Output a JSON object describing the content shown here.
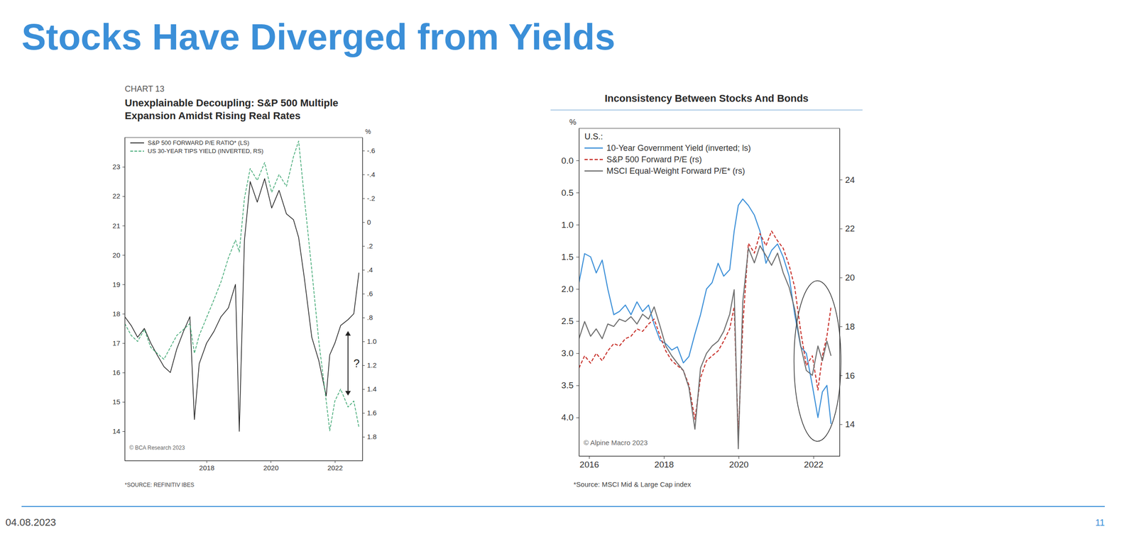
{
  "slide": {
    "title": "Stocks Have Diverged from Yields",
    "date": "04.08.2023",
    "page": 11
  },
  "chart_data": [
    {
      "type": "line",
      "label": "CHART 13",
      "title": "Unexplainable Decoupling: S&P 500 Multiple Expansion Amidst Rising Real Rates",
      "x": [
        2015.45,
        2015.65,
        2015.85,
        2016.06,
        2016.26,
        2016.46,
        2016.67,
        2016.87,
        2017.07,
        2017.28,
        2017.48,
        2017.62,
        2017.77,
        2018.0,
        2018.23,
        2018.45,
        2018.68,
        2018.9,
        2019.02,
        2019.18,
        2019.36,
        2019.58,
        2019.81,
        2020.03,
        2020.26,
        2020.49,
        2020.71,
        2020.87,
        2021.05,
        2021.28,
        2021.5,
        2021.73,
        2021.84,
        2022.0,
        2022.18,
        2022.41,
        2022.59,
        2022.75
      ],
      "xlim": [
        2015.45,
        2022.86
      ],
      "xticks": [
        2018,
        2020,
        2022
      ],
      "ylim": [
        13,
        24
      ],
      "yticks": [
        14,
        15,
        16,
        17,
        18,
        19,
        20,
        21,
        22,
        23
      ],
      "y2lim": [
        2.0,
        -0.71
      ],
      "y2ticks": [
        {
          "value": -0.6,
          "label": "-.6"
        },
        {
          "value": -0.4,
          "label": "-.4"
        },
        {
          "value": -0.2,
          "label": "-.2"
        },
        0,
        {
          "value": 0.2,
          "label": ".2"
        },
        {
          "value": 0.4,
          "label": ".4"
        },
        {
          "value": 0.6,
          "label": ".6"
        },
        {
          "value": 0.8,
          "label": ".8"
        },
        {
          "value": 1,
          "label": "1.0"
        },
        1.2,
        1.4,
        1.6,
        1.8
      ],
      "y2label": "%",
      "grid": false,
      "legend": "top-left",
      "series": [
        {
          "name": "S&P 500 FORWARD P/E RATIO* (LS)",
          "color": "#2a2a2a",
          "line_style": "solid",
          "values": [
            17.9,
            17.6,
            17.2,
            17.5,
            17.0,
            16.6,
            16.2,
            16.0,
            16.8,
            17.4,
            17.9,
            14.4,
            16.3,
            17.0,
            17.4,
            17.9,
            18.2,
            19.0,
            14.0,
            20.5,
            22.5,
            21.8,
            22.6,
            21.6,
            22.2,
            21.4,
            21.2,
            20.6,
            19.2,
            17.2,
            16.4,
            15.2,
            16.6,
            17.0,
            17.6,
            17.8,
            18.0,
            19.4
          ]
        },
        {
          "name": "US 30-YEAR TIPS YIELD (INVERTED, RS)",
          "color": "#3fa873",
          "line_style": "dashed",
          "axis": "y2",
          "values": [
            0.85,
            0.95,
            1.0,
            0.9,
            1.05,
            1.1,
            1.15,
            1.05,
            0.95,
            0.9,
            0.85,
            1.1,
            0.95,
            0.8,
            0.65,
            0.5,
            0.3,
            0.15,
            0.25,
            -0.2,
            -0.45,
            -0.35,
            -0.5,
            -0.25,
            -0.4,
            -0.3,
            -0.55,
            -0.68,
            -0.2,
            0.4,
            1.0,
            1.5,
            1.75,
            1.5,
            1.4,
            1.55,
            1.5,
            1.72
          ]
        }
      ],
      "annotations": [
        "?"
      ],
      "copyright": "© BCA Research 2023",
      "source": "*SOURCE: REFINITIV IBES"
    },
    {
      "type": "line",
      "title": "Inconsistency Between Stocks And Bonds",
      "subtitle": "U.S.:",
      "x": [
        2015.73,
        2015.88,
        2016.04,
        2016.19,
        2016.35,
        2016.5,
        2016.66,
        2016.81,
        2016.97,
        2017.12,
        2017.28,
        2017.43,
        2017.59,
        2017.74,
        2017.9,
        2018.05,
        2018.21,
        2018.36,
        2018.52,
        2018.67,
        2018.83,
        2018.98,
        2019.14,
        2019.29,
        2019.45,
        2019.6,
        2019.76,
        2019.88,
        2019.99,
        2020.11,
        2020.26,
        2020.42,
        2020.57,
        2020.73,
        2020.88,
        2021.04,
        2021.19,
        2021.35,
        2021.5,
        2021.66,
        2021.81,
        2021.97,
        2022.12,
        2022.24,
        2022.36,
        2022.47
      ],
      "xlim": [
        2015.73,
        2022.7
      ],
      "xticks": [
        2016,
        2018,
        2020,
        2022
      ],
      "ylim": [
        4.6,
        -0.5
      ],
      "yticks": [
        {
          "value": 0,
          "label": "0.0"
        },
        0.5,
        {
          "value": 1,
          "label": "1.0"
        },
        1.5,
        {
          "value": 2,
          "label": "2.0"
        },
        2.5,
        {
          "value": 3,
          "label": "3.0"
        },
        3.5,
        {
          "value": 4,
          "label": "4.0"
        }
      ],
      "ylabel": "%",
      "y2lim": [
        12.7,
        26.1
      ],
      "y2ticks": [
        14,
        16,
        18,
        20,
        22,
        24
      ],
      "grid": false,
      "legend": "top-left",
      "series": [
        {
          "name": "10-Year Government Yield (inverted; ls)",
          "color": "#3b8fd8",
          "line_style": "solid",
          "values": [
            1.9,
            1.45,
            1.5,
            1.75,
            1.55,
            2.0,
            2.4,
            2.35,
            2.25,
            2.4,
            2.2,
            2.35,
            2.25,
            2.55,
            2.8,
            2.85,
            2.95,
            2.9,
            3.15,
            3.05,
            2.7,
            2.4,
            2.0,
            1.9,
            1.6,
            1.8,
            1.7,
            1.1,
            0.7,
            0.6,
            0.7,
            0.85,
            1.1,
            1.6,
            1.4,
            1.3,
            1.5,
            1.8,
            2.4,
            2.9,
            3.0,
            3.5,
            4.0,
            3.6,
            3.5,
            4.1
          ]
        },
        {
          "name": "S&P 500 Forward P/E (rs)",
          "color": "#c8312b",
          "line_style": "dashed",
          "axis": "y2",
          "values": [
            16.3,
            16.8,
            16.5,
            16.9,
            16.6,
            17.0,
            17.3,
            17.2,
            17.5,
            17.6,
            17.9,
            17.8,
            18.1,
            18.3,
            17.6,
            17.0,
            16.6,
            16.4,
            16.2,
            15.6,
            14.2,
            15.9,
            16.6,
            16.8,
            17.0,
            17.4,
            17.9,
            18.8,
            13.5,
            18.0,
            21.4,
            21.0,
            21.8,
            21.3,
            21.9,
            21.5,
            21.2,
            20.5,
            19.6,
            17.8,
            16.4,
            16.8,
            15.4,
            16.8,
            17.6,
            18.8
          ]
        },
        {
          "name": "MSCI Equal-Weight Forward P/E* (rs)",
          "color": "#6e6e6e",
          "line_style": "solid",
          "axis": "y2",
          "values": [
            17.5,
            18.2,
            17.6,
            17.9,
            17.5,
            18.1,
            18.0,
            18.3,
            18.2,
            18.4,
            18.1,
            18.5,
            18.3,
            18.8,
            18.0,
            17.2,
            16.8,
            16.5,
            16.2,
            15.5,
            13.8,
            16.3,
            16.9,
            17.2,
            17.4,
            17.8,
            18.5,
            19.5,
            13.0,
            19.0,
            21.2,
            20.6,
            21.3,
            20.9,
            20.5,
            21.0,
            20.2,
            19.6,
            18.7,
            17.2,
            16.2,
            16.0,
            17.2,
            16.6,
            17.4,
            16.8
          ]
        }
      ],
      "copyright": "© Alpine Macro 2023",
      "source": "*Source: MSCI Mid & Large Cap index"
    }
  ]
}
